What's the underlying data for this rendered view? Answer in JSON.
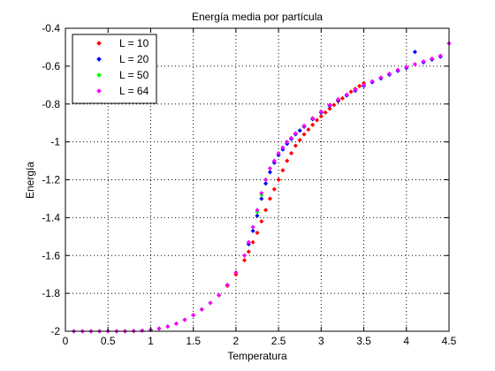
{
  "chart_data": {
    "type": "scatter",
    "title": "Energía media por partícula",
    "xlabel": "Temperatura",
    "ylabel": "Energía",
    "xlim": [
      0,
      4.5
    ],
    "ylim": [
      -2,
      -0.4
    ],
    "xticks": [
      0,
      0.5,
      1,
      1.5,
      2,
      2.5,
      3,
      3.5,
      4,
      4.5
    ],
    "xtick_labels": [
      "0",
      "0.5",
      "1",
      "1.5",
      "2",
      "2.5",
      "3",
      "3.5",
      "4",
      "4.5"
    ],
    "yticks": [
      -2,
      -1.8,
      -1.6,
      -1.4,
      -1.2,
      -1,
      -0.8,
      -0.6,
      -0.4
    ],
    "ytick_labels": [
      "-2",
      "-1.8",
      "-1.6",
      "-1.4",
      "-1.2",
      "-1",
      "-0.8",
      "-0.6",
      "-0.4"
    ],
    "grid": true,
    "legend_position": "top-left",
    "series": [
      {
        "name": "L = 10",
        "color": "#ff0000",
        "x": [
          0.1,
          0.2,
          0.3,
          0.4,
          0.5,
          0.6,
          0.7,
          0.8,
          0.9,
          1.0,
          1.1,
          1.2,
          1.3,
          1.4,
          1.5,
          1.6,
          1.7,
          1.8,
          1.9,
          2.0,
          2.1,
          2.15,
          2.2,
          2.25,
          2.3,
          2.35,
          2.4,
          2.45,
          2.5,
          2.55,
          2.6,
          2.65,
          2.7,
          2.75,
          2.8,
          2.85,
          2.9,
          2.95,
          3.0,
          3.05,
          3.1,
          3.15,
          3.2,
          3.25,
          3.3,
          3.35,
          3.4,
          3.45,
          3.5
        ],
        "y": [
          -2.0,
          -2.0,
          -2.0,
          -2.0,
          -2.0,
          -2.0,
          -2.0,
          -1.999,
          -1.997,
          -1.993,
          -1.986,
          -1.975,
          -1.96,
          -1.94,
          -1.915,
          -1.885,
          -1.85,
          -1.81,
          -1.76,
          -1.7,
          -1.625,
          -1.58,
          -1.53,
          -1.48,
          -1.42,
          -1.36,
          -1.3,
          -1.25,
          -1.2,
          -1.15,
          -1.1,
          -1.06,
          -1.02,
          -0.99,
          -0.96,
          -0.935,
          -0.91,
          -0.885,
          -0.865,
          -0.845,
          -0.825,
          -0.805,
          -0.785,
          -0.77,
          -0.75,
          -0.735,
          -0.72,
          -0.705,
          -0.69
        ]
      },
      {
        "name": "L = 20",
        "color": "#0000ff",
        "x": [
          0.1,
          0.2,
          0.3,
          0.4,
          0.5,
          0.6,
          0.7,
          0.8,
          0.9,
          1.0,
          1.1,
          1.2,
          1.3,
          1.4,
          1.5,
          1.6,
          1.7,
          1.8,
          1.9,
          2.0,
          2.1,
          2.15,
          2.2,
          2.25,
          2.3,
          2.35,
          2.4,
          2.45,
          2.5,
          2.55,
          2.6,
          2.65,
          2.7,
          2.75,
          2.8,
          2.9,
          3.0,
          3.1,
          3.2,
          3.3,
          3.4,
          3.5,
          3.6,
          3.7,
          3.8,
          3.9,
          4.0,
          4.1,
          4.2,
          4.3,
          4.4,
          4.5
        ],
        "y": [
          -2.0,
          -2.0,
          -2.0,
          -2.0,
          -2.0,
          -2.0,
          -2.0,
          -1.999,
          -1.997,
          -1.993,
          -1.986,
          -1.975,
          -1.96,
          -1.94,
          -1.915,
          -1.885,
          -1.85,
          -1.81,
          -1.755,
          -1.69,
          -1.6,
          -1.54,
          -1.47,
          -1.39,
          -1.3,
          -1.22,
          -1.16,
          -1.11,
          -1.07,
          -1.04,
          -1.01,
          -0.985,
          -0.96,
          -0.94,
          -0.92,
          -0.88,
          -0.845,
          -0.81,
          -0.78,
          -0.755,
          -0.73,
          -0.705,
          -0.685,
          -0.665,
          -0.645,
          -0.625,
          -0.61,
          -0.525,
          -0.58,
          -0.565,
          -0.55,
          -0.48
        ]
      },
      {
        "name": "L = 50",
        "color": "#00ff00",
        "x": [
          0.1,
          0.2,
          0.3,
          0.4,
          0.5,
          0.6,
          0.7,
          0.8,
          0.9,
          1.0,
          1.1,
          1.2,
          1.3,
          1.4,
          1.5,
          1.6,
          1.7,
          1.8,
          1.9,
          2.0,
          2.1,
          2.15,
          2.2,
          2.25,
          2.3,
          2.35,
          2.4,
          2.45,
          2.5,
          2.55,
          2.6,
          2.65,
          2.7,
          2.8,
          2.9,
          3.0,
          3.1,
          3.2,
          3.3,
          3.4,
          3.5
        ],
        "y": [
          -2.0,
          -2.0,
          -2.0,
          -2.0,
          -2.0,
          -2.0,
          -2.0,
          -1.999,
          -1.997,
          -1.993,
          -1.986,
          -1.975,
          -1.96,
          -1.94,
          -1.915,
          -1.885,
          -1.85,
          -1.81,
          -1.755,
          -1.69,
          -1.6,
          -1.53,
          -1.45,
          -1.37,
          -1.28,
          -1.2,
          -1.14,
          -1.1,
          -1.06,
          -1.03,
          -1.0,
          -0.98,
          -0.955,
          -0.915,
          -0.875,
          -0.84,
          -0.805,
          -0.775,
          -0.75,
          -0.725,
          -0.7
        ]
      },
      {
        "name": "L = 64",
        "color": "#ff00ff",
        "x": [
          0.1,
          0.2,
          0.3,
          0.4,
          0.5,
          0.6,
          0.7,
          0.8,
          0.9,
          1.0,
          1.1,
          1.2,
          1.3,
          1.4,
          1.5,
          1.6,
          1.7,
          1.8,
          1.9,
          2.0,
          2.1,
          2.15,
          2.2,
          2.25,
          2.3,
          2.35,
          2.4,
          2.45,
          2.5,
          2.55,
          2.6,
          2.65,
          2.7,
          2.8,
          2.9,
          3.0,
          3.1,
          3.2,
          3.3,
          3.4,
          3.5,
          3.6,
          3.7,
          3.8,
          3.9,
          4.0,
          4.1,
          4.2,
          4.3,
          4.4,
          4.5
        ],
        "y": [
          -2.0,
          -2.0,
          -2.0,
          -2.0,
          -2.0,
          -2.0,
          -2.0,
          -1.999,
          -1.997,
          -1.993,
          -1.986,
          -1.975,
          -1.96,
          -1.94,
          -1.915,
          -1.885,
          -1.85,
          -1.81,
          -1.755,
          -1.69,
          -1.6,
          -1.53,
          -1.45,
          -1.36,
          -1.27,
          -1.2,
          -1.14,
          -1.1,
          -1.06,
          -1.03,
          -1.0,
          -0.98,
          -0.955,
          -0.915,
          -0.875,
          -0.84,
          -0.805,
          -0.775,
          -0.75,
          -0.725,
          -0.7,
          -0.68,
          -0.66,
          -0.64,
          -0.62,
          -0.605,
          -0.59,
          -0.575,
          -0.56,
          -0.545,
          -0.48
        ]
      }
    ]
  }
}
